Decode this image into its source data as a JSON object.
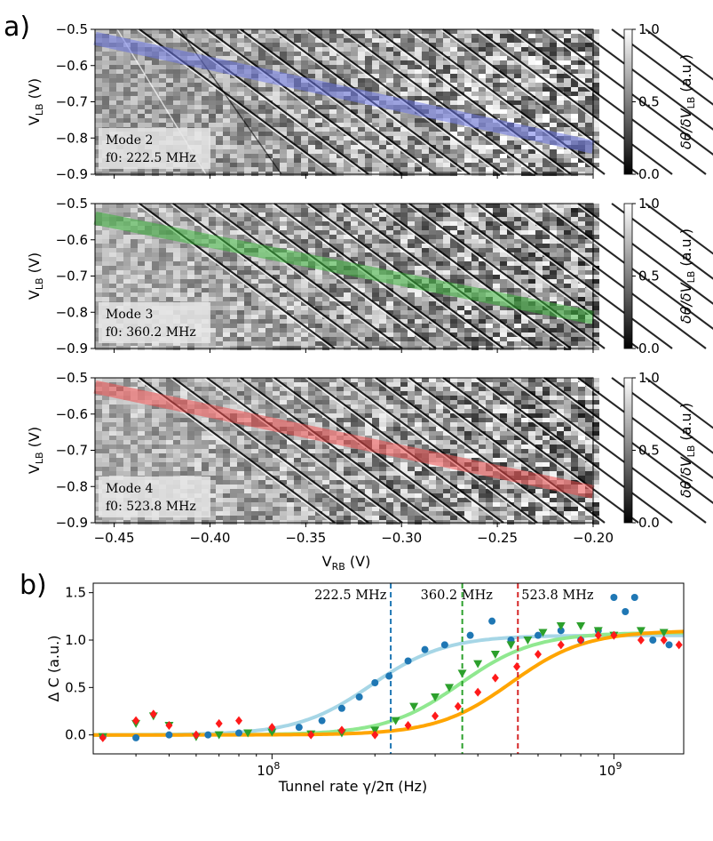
{
  "panel_a": {
    "letter": "a)",
    "ylabel": "V",
    "ylabel_sub": "LB",
    "ylabel_units": " (V)",
    "xlabel": "V",
    "xlabel_sub": "RB",
    "xlabel_units": " (V)",
    "colorbar_label": "δθ/δV",
    "colorbar_label_sub": "LB",
    "colorbar_label_units": " (a.u.)",
    "colorbar_ticks": [
      "0.0",
      "0.5",
      "1.0"
    ],
    "ytick_labels": [
      "−0.5",
      "−0.6",
      "−0.7",
      "−0.8",
      "−0.9"
    ],
    "xtick_labels": [
      "−0.45",
      "−0.40",
      "−0.35",
      "−0.30",
      "−0.25",
      "−0.20"
    ],
    "subplots": [
      {
        "mode_label": "Mode 2",
        "freq_label": "f0: 222.5 MHz",
        "band_color": "#6e78e6"
      },
      {
        "mode_label": "Mode 3",
        "freq_label": "f0: 360.2 MHz",
        "band_color": "#3cb43c"
      },
      {
        "mode_label": "Mode 4",
        "freq_label": "f0: 523.8 MHz",
        "band_color": "#f05050"
      }
    ]
  },
  "panel_b": {
    "letter": "b)",
    "ylabel": "Δ C (a.u.)",
    "xlabel": "Tunnel rate γ/2π (Hz)",
    "ytick_labels": [
      "0.0",
      "0.5",
      "1.0",
      "1.5"
    ],
    "xtick_labels": [
      "10",
      "10"
    ],
    "xtick_exponents": [
      "8",
      "9"
    ],
    "annotations": [
      "222.5 MHz",
      "360.2 MHz",
      "523.8 MHz"
    ]
  },
  "chart_data": [
    {
      "type": "heatmap",
      "title": "Mode 2",
      "annotation": "f0: 222.5 MHz",
      "xlabel": "V_RB (V)",
      "ylabel": "V_LB (V)",
      "xlim": [
        -0.46,
        -0.2
      ],
      "ylim": [
        -0.9,
        -0.5
      ],
      "colorbar": {
        "label": "δθ/δV_LB (a.u.)",
        "range": [
          0.0,
          1.0
        ]
      },
      "highlight_band": {
        "color": "#6e78e6",
        "from": [
          -0.46,
          -0.525
        ],
        "to": [
          -0.2,
          -0.825
        ]
      }
    },
    {
      "type": "heatmap",
      "title": "Mode 3",
      "annotation": "f0: 360.2 MHz",
      "xlabel": "V_RB (V)",
      "ylabel": "V_LB (V)",
      "xlim": [
        -0.46,
        -0.2
      ],
      "ylim": [
        -0.9,
        -0.5
      ],
      "colorbar": {
        "label": "δθ/δV_LB (a.u.)",
        "range": [
          0.0,
          1.0
        ]
      },
      "highlight_band": {
        "color": "#3cb43c",
        "from": [
          -0.46,
          -0.54
        ],
        "to": [
          -0.2,
          -0.815
        ]
      }
    },
    {
      "type": "heatmap",
      "title": "Mode 4",
      "annotation": "f0: 523.8 MHz",
      "xlabel": "V_RB (V)",
      "ylabel": "V_LB (V)",
      "xlim": [
        -0.46,
        -0.2
      ],
      "ylim": [
        -0.9,
        -0.5
      ],
      "colorbar": {
        "label": "δθ/δV_LB (a.u.)",
        "range": [
          0.0,
          1.0
        ]
      },
      "highlight_band": {
        "color": "#f05050",
        "from": [
          -0.46,
          -0.525
        ],
        "to": [
          -0.2,
          -0.815
        ]
      }
    },
    {
      "type": "scatter",
      "xscale": "log",
      "xlabel": "Tunnel rate γ/2π (Hz)",
      "ylabel": "Δ C (a.u.)",
      "xlim": [
        30000000,
        1600000000
      ],
      "ylim": [
        -0.2,
        1.6
      ],
      "vlines": [
        {
          "x": 222500000,
          "label": "222.5 MHz",
          "color": "#1f77b4"
        },
        {
          "x": 360200000,
          "label": "360.2 MHz",
          "color": "#2ca02c"
        },
        {
          "x": 523800000,
          "label": "523.8 MHz",
          "color": "#d62728"
        }
      ],
      "series": [
        {
          "name": "Mode 2",
          "marker": "circle",
          "color": "#1f77b4",
          "fit": {
            "color": "#a6d6e6",
            "center": 195000000,
            "amplitude": 1.05
          },
          "x": [
            32000000,
            40000000,
            50000000,
            65000000,
            80000000,
            100000000,
            120000000,
            140000000,
            160000000,
            180000000,
            200000000,
            220000000,
            250000000,
            280000000,
            320000000,
            380000000,
            440000000,
            500000000,
            600000000,
            700000000,
            800000000,
            900000000,
            1000000000,
            1080000000,
            1150000000,
            1300000000,
            1450000000
          ],
          "values": [
            -0.02,
            -0.03,
            0.0,
            0.0,
            0.02,
            0.05,
            0.08,
            0.15,
            0.28,
            0.4,
            0.55,
            0.62,
            0.78,
            0.9,
            0.95,
            1.05,
            1.2,
            1.0,
            1.05,
            1.1,
            1.0,
            1.1,
            1.45,
            1.3,
            1.45,
            1.0,
            0.95
          ]
        },
        {
          "name": "Mode 3",
          "marker": "triangle-down",
          "color": "#2ca02c",
          "fit": {
            "color": "#90e890",
            "center": 355000000,
            "amplitude": 1.08
          },
          "x": [
            32000000,
            40000000,
            45000000,
            50000000,
            60000000,
            70000000,
            85000000,
            100000000,
            130000000,
            160000000,
            200000000,
            230000000,
            260000000,
            300000000,
            330000000,
            360000000,
            400000000,
            450000000,
            500000000,
            560000000,
            620000000,
            700000000,
            800000000,
            900000000,
            1000000000,
            1200000000,
            1400000000
          ],
          "values": [
            -0.02,
            0.12,
            0.2,
            0.1,
            -0.02,
            0.0,
            0.02,
            0.03,
            0.01,
            0.02,
            0.05,
            0.15,
            0.3,
            0.4,
            0.5,
            0.65,
            0.75,
            0.85,
            0.95,
            1.0,
            1.08,
            1.15,
            1.15,
            1.1,
            1.05,
            1.1,
            1.08
          ]
        },
        {
          "name": "Mode 4",
          "marker": "diamond",
          "color": "#ff1a1a",
          "fit": {
            "color": "#ffa500",
            "center": 500000000,
            "amplitude": 1.1
          },
          "x": [
            32000000,
            40000000,
            45000000,
            50000000,
            60000000,
            70000000,
            80000000,
            100000000,
            130000000,
            160000000,
            200000000,
            250000000,
            300000000,
            350000000,
            400000000,
            450000000,
            520000000,
            600000000,
            700000000,
            800000000,
            900000000,
            1000000000,
            1200000000,
            1400000000,
            1550000000
          ],
          "values": [
            -0.03,
            0.15,
            0.22,
            0.1,
            0.0,
            0.12,
            0.15,
            0.08,
            0.0,
            0.05,
            0.0,
            0.1,
            0.2,
            0.3,
            0.45,
            0.6,
            0.72,
            0.85,
            0.95,
            1.0,
            1.05,
            1.05,
            1.0,
            1.0,
            0.95
          ]
        }
      ]
    }
  ]
}
